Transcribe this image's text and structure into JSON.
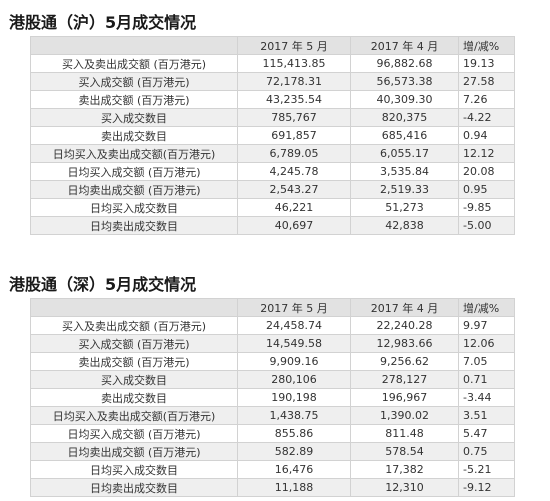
{
  "sections": [
    {
      "title": "港股通（沪）5月成交情况",
      "headers": [
        "",
        "2017 年 5 月",
        "2017 年 4 月",
        "增/减%"
      ],
      "rows": [
        {
          "label": "买入及卖出成交额 (百万港元)",
          "may": "115,413.85",
          "apr": "96,882.68",
          "chg": "19.13"
        },
        {
          "label": "买入成交额 (百万港元)",
          "may": "72,178.31",
          "apr": "56,573.38",
          "chg": "27.58"
        },
        {
          "label": "卖出成交额 (百万港元)",
          "may": "43,235.54",
          "apr": "40,309.30",
          "chg": "7.26"
        },
        {
          "label": "买入成交数目",
          "may": "785,767",
          "apr": "820,375",
          "chg": "-4.22"
        },
        {
          "label": "卖出成交数目",
          "may": "691,857",
          "apr": "685,416",
          "chg": "0.94"
        },
        {
          "label": "日均买入及卖出成交额(百万港元)",
          "may": "6,789.05",
          "apr": "6,055.17",
          "chg": "12.12"
        },
        {
          "label": "日均买入成交额 (百万港元)",
          "may": "4,245.78",
          "apr": "3,535.84",
          "chg": "20.08"
        },
        {
          "label": "日均卖出成交额 (百万港元)",
          "may": "2,543.27",
          "apr": "2,519.33",
          "chg": "0.95"
        },
        {
          "label": "日均买入成交数目",
          "may": "46,221",
          "apr": "51,273",
          "chg": "-9.85"
        },
        {
          "label": "日均卖出成交数目",
          "may": "40,697",
          "apr": "42,838",
          "chg": "-5.00"
        }
      ]
    },
    {
      "title": "港股通（深）5月成交情况",
      "headers": [
        "",
        "2017 年 5 月",
        "2017 年 4 月",
        "增/减%"
      ],
      "rows": [
        {
          "label": "买入及卖出成交额 (百万港元)",
          "may": "24,458.74",
          "apr": "22,240.28",
          "chg": "9.97"
        },
        {
          "label": "买入成交额 (百万港元)",
          "may": "14,549.58",
          "apr": "12,983.66",
          "chg": "12.06"
        },
        {
          "label": "卖出成交额 (百万港元)",
          "may": "9,909.16",
          "apr": "9,256.62",
          "chg": "7.05"
        },
        {
          "label": "买入成交数目",
          "may": "280,106",
          "apr": "278,127",
          "chg": "0.71"
        },
        {
          "label": "卖出成交数目",
          "may": "190,198",
          "apr": "196,967",
          "chg": "-3.44"
        },
        {
          "label": "日均买入及卖出成交额(百万港元)",
          "may": "1,438.75",
          "apr": "1,390.02",
          "chg": "3.51"
        },
        {
          "label": "日均买入成交额 (百万港元)",
          "may": "855.86",
          "apr": "811.48",
          "chg": "5.47"
        },
        {
          "label": "日均卖出成交额 (百万港元)",
          "may": "582.89",
          "apr": "578.54",
          "chg": "0.75"
        },
        {
          "label": "日均买入成交数目",
          "may": "16,476",
          "apr": "17,382",
          "chg": "-5.21"
        },
        {
          "label": "日均卖出成交数目",
          "may": "11,188",
          "apr": "12,310",
          "chg": "-9.12"
        }
      ]
    }
  ]
}
